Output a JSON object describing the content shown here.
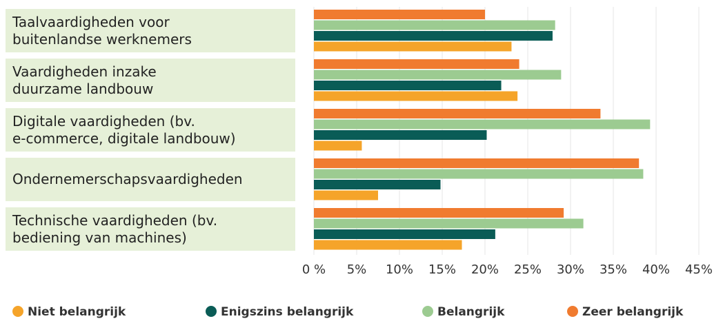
{
  "chart_data": {
    "type": "bar",
    "orientation": "horizontal",
    "categories": [
      "Taalvaardigheden voor\nbuitenlandse werknemers",
      "Vaardigheden inzake\nduurzame landbouw",
      "Digitale vaardigheden (bv.\ne-commerce, digitale landbouw)",
      "Ondernemerschapsvaardigheden",
      "Technische vaardigheden (bv.\nbediening van machines)"
    ],
    "series": [
      {
        "name": "Zeer belangrijk",
        "color": "#f07b2f",
        "values": [
          20,
          24,
          33.5,
          38,
          29.2
        ]
      },
      {
        "name": "Belangrijk",
        "color": "#9ccb91",
        "values": [
          28.2,
          28.9,
          39.3,
          38.5,
          31.5
        ]
      },
      {
        "name": "Enigszins belangrijk",
        "color": "#0a5c56",
        "values": [
          27.9,
          21.9,
          20.2,
          14.8,
          21.2
        ]
      },
      {
        "name": "Niet belangrijk",
        "color": "#f5a42a",
        "values": [
          23.1,
          23.8,
          5.6,
          7.5,
          17.3
        ]
      }
    ],
    "legend_order": [
      3,
      2,
      1,
      0
    ],
    "xlim": [
      0,
      45
    ],
    "xticks": [
      {
        "value": 0,
        "label": "0 %"
      },
      {
        "value": 5,
        "label": "5%"
      },
      {
        "value": 10,
        "label": "10%"
      },
      {
        "value": 15,
        "label": "15%"
      },
      {
        "value": 20,
        "label": "20%"
      },
      {
        "value": 25,
        "label": "25%"
      },
      {
        "value": 30,
        "label": "30%"
      },
      {
        "value": 35,
        "label": "35%"
      },
      {
        "value": 40,
        "label": "40%"
      },
      {
        "value": 45,
        "label": "45%"
      }
    ],
    "grid": true
  }
}
